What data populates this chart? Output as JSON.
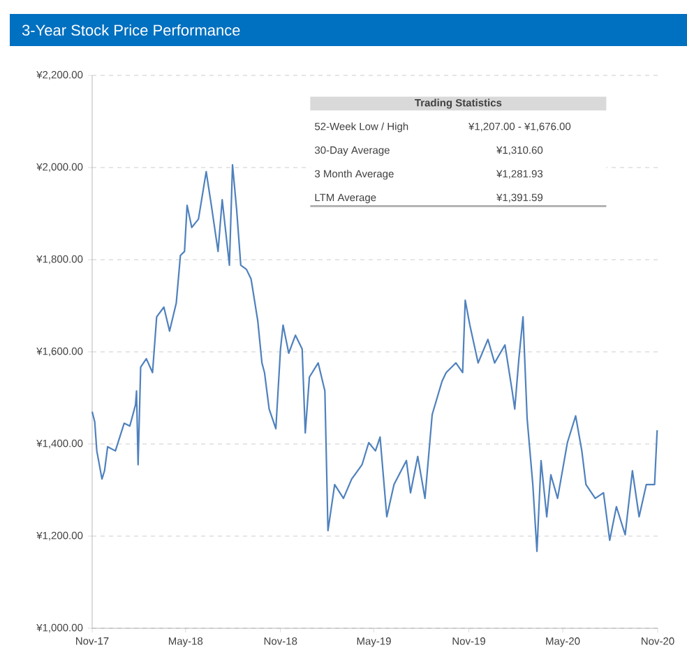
{
  "chart_data": {
    "type": "line",
    "title": "3-Year Stock Price Performance",
    "x": [
      "2017-11-01",
      "2017-11-06",
      "2017-11-10",
      "2017-11-20",
      "2017-11-25",
      "2017-12-01",
      "2017-12-16",
      "2018-01-02",
      "2018-01-13",
      "2018-01-24",
      "2018-01-26",
      "2018-01-29",
      "2018-02-03",
      "2018-02-14",
      "2018-02-26",
      "2018-03-06",
      "2018-03-20",
      "2018-03-31",
      "2018-04-13",
      "2018-04-21",
      "2018-04-29",
      "2018-05-04",
      "2018-05-13",
      "2018-05-26",
      "2018-06-10",
      "2018-06-20",
      "2018-07-03",
      "2018-07-11",
      "2018-07-25",
      "2018-07-31",
      "2018-08-08",
      "2018-08-16",
      "2018-08-27",
      "2018-09-05",
      "2018-09-18",
      "2018-09-26",
      "2018-10-01",
      "2018-10-10",
      "2018-10-23",
      "2018-11-01",
      "2018-11-06",
      "2018-11-17",
      "2018-11-30",
      "2018-12-13",
      "2018-12-19",
      "2018-12-27",
      "2019-01-13",
      "2019-01-26",
      "2019-02-01",
      "2019-02-14",
      "2019-03-03",
      "2019-03-19",
      "2019-04-08",
      "2019-04-21",
      "2019-05-04",
      "2019-05-13",
      "2019-05-26",
      "2019-06-09",
      "2019-07-03",
      "2019-07-11",
      "2019-07-25",
      "2019-08-08",
      "2019-08-22",
      "2019-09-10",
      "2019-09-18",
      "2019-10-07",
      "2019-10-20",
      "2019-10-25",
      "2019-11-03",
      "2019-11-19",
      "2019-12-08",
      "2019-12-21",
      "2020-01-10",
      "2020-01-24",
      "2020-01-29",
      "2020-02-06",
      "2020-02-14",
      "2020-02-22",
      "2020-03-04",
      "2020-03-12",
      "2020-03-20",
      "2020-03-31",
      "2020-04-08",
      "2020-04-21",
      "2020-05-10",
      "2020-05-26",
      "2020-06-07",
      "2020-06-15",
      "2020-07-03",
      "2020-07-19",
      "2020-07-31",
      "2020-08-13",
      "2020-08-30",
      "2020-09-13",
      "2020-09-26",
      "2020-10-10",
      "2020-10-26",
      "2020-10-31"
    ],
    "series": [
      {
        "color": "#4f81bd",
        "values": [
          1470,
          1448,
          1385,
          1324,
          1342,
          1394,
          1385,
          1445,
          1439,
          1485,
          1515,
          1355,
          1567,
          1585,
          1555,
          1676,
          1697,
          1645,
          1706,
          1809,
          1818,
          1918,
          1870,
          1888,
          1991,
          1918,
          1818,
          1930,
          1788,
          2006,
          1909,
          1788,
          1779,
          1758,
          1667,
          1576,
          1555,
          1476,
          1433,
          1606,
          1658,
          1597,
          1636,
          1606,
          1424,
          1545,
          1576,
          1515,
          1212,
          1312,
          1282,
          1324,
          1355,
          1403,
          1385,
          1415,
          1242,
          1312,
          1364,
          1294,
          1373,
          1282,
          1464,
          1536,
          1555,
          1576,
          1555,
          1712,
          1658,
          1576,
          1627,
          1576,
          1615,
          1515,
          1476,
          1585,
          1676,
          1455,
          1312,
          1167,
          1364,
          1242,
          1333,
          1282,
          1403,
          1461,
          1385,
          1312,
          1282,
          1294,
          1191,
          1264,
          1203,
          1342,
          1242,
          1312,
          1312,
          1430
        ]
      }
    ],
    "xlim": [
      "2017-11-01",
      "2020-11-01"
    ],
    "xticks": [
      {
        "value": "2017-11-01",
        "label": "Nov-17"
      },
      {
        "value": "2018-05-01",
        "label": "May-18"
      },
      {
        "value": "2018-11-01",
        "label": "Nov-18"
      },
      {
        "value": "2019-05-01",
        "label": "May-19"
      },
      {
        "value": "2019-11-01",
        "label": "Nov-19"
      },
      {
        "value": "2020-05-01",
        "label": "May-20"
      },
      {
        "value": "2020-11-01",
        "label": "Nov-20"
      }
    ],
    "ylim": [
      1000,
      2200
    ],
    "yticks": [
      {
        "value": 1000,
        "label": "¥1,000.00"
      },
      {
        "value": 1200,
        "label": "¥1,200.00"
      },
      {
        "value": 1400,
        "label": "¥1,400.00"
      },
      {
        "value": 1600,
        "label": "¥1,600.00"
      },
      {
        "value": 1800,
        "label": "¥1,800.00"
      },
      {
        "value": 2000,
        "label": "¥2,000.00"
      },
      {
        "value": 2200,
        "label": "¥2,200.00"
      }
    ],
    "grid": "y",
    "marker": "none",
    "line_style": "solid",
    "annotations": [
      "Trading Statistics",
      "52-Week Low / High",
      "¥1,207.00 - ¥1,676.00",
      "30-Day Average",
      "¥1,310.60",
      "3 Month Average",
      "¥1,281.93",
      "LTM Average",
      "¥1,391.59"
    ]
  }
}
